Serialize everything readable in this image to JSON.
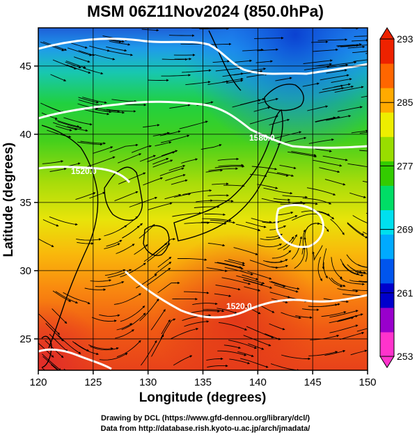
{
  "title": "MSM 06Z11Nov2024 (850.0hPa)",
  "x_axis": {
    "label": "Longitude (degrees)",
    "ticks": [
      "120",
      "125",
      "130",
      "135",
      "140",
      "145",
      "150"
    ]
  },
  "y_axis": {
    "label": "Latitude  (degrees)",
    "ticks": [
      "25",
      "30",
      "35",
      "40",
      "45"
    ]
  },
  "colorbar": {
    "ticks": [
      "293",
      "285",
      "277",
      "269",
      "261",
      "253"
    ],
    "min": 253,
    "max": 293,
    "colors": [
      "#ff33cc",
      "#9900cc",
      "#0000cc",
      "#0055ee",
      "#00aaff",
      "#00e0ee",
      "#00dd66",
      "#33cc00",
      "#99dd00",
      "#eeee00",
      "#ffaa00",
      "#ff6600",
      "#ee2200"
    ]
  },
  "contour_labels": [
    "1520.0",
    "1580.0",
    "1520.0"
  ],
  "credits": {
    "line1": "Drawing by DCL (https://www.gfd-dennou.org/library/dcl/)",
    "line2": "Data from http://database.rish.kyoto-u.ac.jp/arch/jmadata/"
  },
  "map": {
    "lon_range": [
      120,
      150
    ],
    "lat_range": [
      22.7,
      47.8
    ],
    "field": "temperature_850hPa",
    "units": "K"
  }
}
